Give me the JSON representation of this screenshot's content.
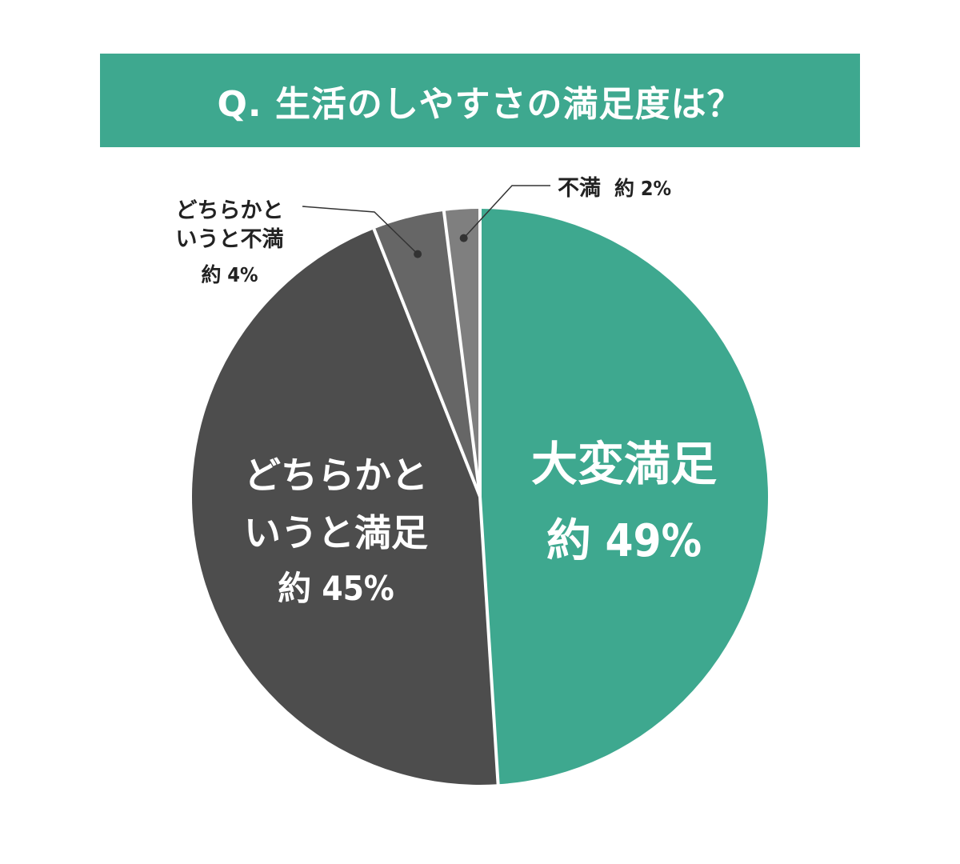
{
  "chart_data": {
    "type": "pie",
    "title": "Q. 生活のしやすさの満足度は？",
    "slices": [
      {
        "label": "大変満足",
        "value": 49,
        "value_label": "約 49%",
        "label_lines": [
          "大変満足"
        ],
        "color": "#3ea88f"
      },
      {
        "label": "どちらかというと満足",
        "value": 45,
        "value_label": "約 45%",
        "label_lines": [
          "どちらかと",
          "いうと満足"
        ],
        "color": "#4d4d4d"
      },
      {
        "label": "どちらかというと不満",
        "value": 4,
        "value_label": "約 4%",
        "label_lines": [
          "どちらかと",
          "いうと不満"
        ],
        "color": "#666666"
      },
      {
        "label": "不満",
        "value": 2,
        "value_label": "約 2%",
        "label_lines": [
          "不満"
        ],
        "color": "#7f7f7f"
      }
    ],
    "legend": "none"
  },
  "colors": {
    "accent": "#3ea88f",
    "separator": "#ffffff",
    "callout_line": "#333333"
  }
}
